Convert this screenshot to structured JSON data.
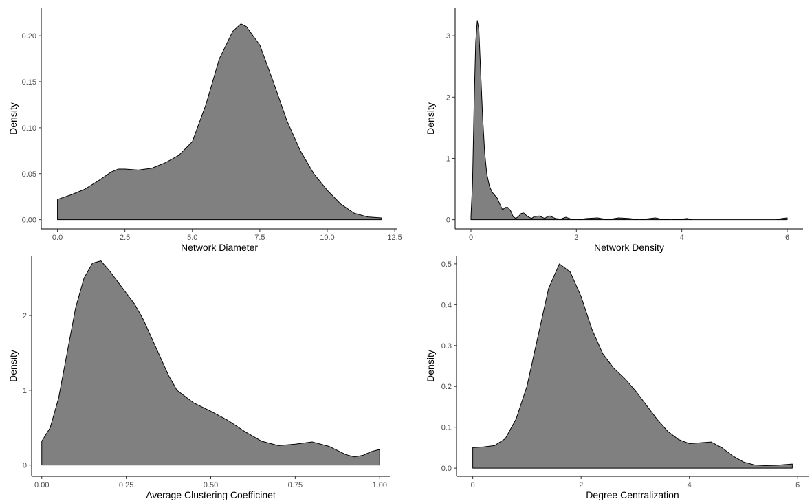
{
  "chart_data": [
    {
      "type": "area",
      "title": "",
      "xlabel": "Network Diameter",
      "ylabel": "Density",
      "xlim": [
        -0.6,
        12.6
      ],
      "ylim": [
        -0.01,
        0.23
      ],
      "xticks": [
        0.0,
        2.5,
        5.0,
        7.5,
        10.0,
        12.5
      ],
      "xtick_labels": [
        "0.0",
        "2.5",
        "5.0",
        "7.5",
        "10.0",
        "12.5"
      ],
      "yticks": [
        0.0,
        0.05,
        0.1,
        0.15,
        0.2
      ],
      "ytick_labels": [
        "0.00",
        "0.05",
        "0.10",
        "0.15",
        "0.20"
      ],
      "grid": false,
      "fill_color": "#808080",
      "x": [
        0,
        0.5,
        1,
        1.5,
        2,
        2.25,
        2.5,
        3,
        3.5,
        4,
        4.5,
        5,
        5.5,
        6,
        6.5,
        6.8,
        7,
        7.5,
        8,
        8.5,
        9,
        9.5,
        10,
        10.5,
        11,
        11.5,
        12
      ],
      "y": [
        0.022,
        0.027,
        0.033,
        0.042,
        0.052,
        0.055,
        0.055,
        0.054,
        0.056,
        0.062,
        0.07,
        0.085,
        0.125,
        0.175,
        0.205,
        0.213,
        0.21,
        0.19,
        0.15,
        0.108,
        0.075,
        0.05,
        0.032,
        0.017,
        0.007,
        0.003,
        0.002
      ]
    },
    {
      "type": "area",
      "title": "",
      "xlabel": "Network Density",
      "ylabel": "Density",
      "xlim": [
        -0.3,
        6.3
      ],
      "ylim": [
        -0.15,
        3.45
      ],
      "xticks": [
        0,
        2,
        4,
        6
      ],
      "xtick_labels": [
        "0",
        "2",
        "4",
        "6"
      ],
      "yticks": [
        0,
        1,
        2,
        3
      ],
      "ytick_labels": [
        "0",
        "1",
        "2",
        "3"
      ],
      "grid": false,
      "fill_color": "#808080",
      "x": [
        0,
        0.03,
        0.06,
        0.09,
        0.12,
        0.15,
        0.18,
        0.22,
        0.26,
        0.3,
        0.35,
        0.4,
        0.45,
        0.5,
        0.55,
        0.6,
        0.65,
        0.7,
        0.75,
        0.8,
        0.85,
        0.9,
        0.95,
        1.0,
        1.05,
        1.1,
        1.15,
        1.2,
        1.3,
        1.4,
        1.45,
        1.5,
        1.6,
        1.7,
        1.8,
        1.9,
        2.0,
        2.2,
        2.4,
        2.6,
        2.8,
        3.0,
        3.2,
        3.4,
        3.5,
        3.6,
        3.8,
        4.0,
        4.1,
        4.2,
        4.5,
        5.0,
        5.5,
        5.8,
        5.9,
        6.0
      ],
      "y": [
        0.05,
        0.6,
        1.9,
        2.9,
        3.25,
        3.1,
        2.5,
        1.7,
        1.1,
        0.75,
        0.55,
        0.45,
        0.4,
        0.35,
        0.25,
        0.16,
        0.2,
        0.2,
        0.15,
        0.05,
        0.02,
        0.05,
        0.1,
        0.11,
        0.07,
        0.04,
        0.02,
        0.05,
        0.06,
        0.02,
        0.05,
        0.06,
        0.02,
        0.01,
        0.04,
        0.01,
        0.0,
        0.02,
        0.03,
        0.0,
        0.03,
        0.02,
        0.0,
        0.02,
        0.03,
        0.01,
        0.0,
        0.01,
        0.02,
        0.0,
        0.0,
        0.0,
        0.0,
        0.0,
        0.02,
        0.03
      ]
    },
    {
      "type": "area",
      "title": "",
      "xlabel": "Average Clustering Coefficinet",
      "ylabel": "Density",
      "xlim": [
        -0.03,
        1.03
      ],
      "ylim": [
        -0.15,
        2.8
      ],
      "xticks": [
        0.0,
        0.25,
        0.5,
        0.75,
        1.0
      ],
      "xtick_labels": [
        "0.00",
        "0.25",
        "0.50",
        "0.75",
        "1.00"
      ],
      "yticks": [
        0,
        1,
        2
      ],
      "ytick_labels": [
        "0",
        "1",
        "2"
      ],
      "grid": false,
      "fill_color": "#808080",
      "x": [
        0,
        0.025,
        0.05,
        0.075,
        0.1,
        0.125,
        0.15,
        0.175,
        0.2,
        0.225,
        0.25,
        0.275,
        0.3,
        0.325,
        0.35,
        0.375,
        0.4,
        0.45,
        0.5,
        0.55,
        0.6,
        0.65,
        0.7,
        0.75,
        0.8,
        0.85,
        0.9,
        0.925,
        0.95,
        0.975,
        1.0
      ],
      "y": [
        0.32,
        0.5,
        0.9,
        1.5,
        2.1,
        2.5,
        2.7,
        2.73,
        2.6,
        2.45,
        2.3,
        2.15,
        1.95,
        1.7,
        1.45,
        1.2,
        1.0,
        0.83,
        0.72,
        0.6,
        0.45,
        0.32,
        0.26,
        0.28,
        0.31,
        0.25,
        0.14,
        0.11,
        0.13,
        0.18,
        0.21
      ]
    },
    {
      "type": "area",
      "title": "",
      "xlabel": "Degree Centralization",
      "ylabel": "Density",
      "xlim": [
        -0.3,
        6.2
      ],
      "ylim": [
        -0.02,
        0.52
      ],
      "xticks": [
        0,
        2,
        4,
        6
      ],
      "xtick_labels": [
        "0",
        "2",
        "4",
        "6"
      ],
      "yticks": [
        0.0,
        0.1,
        0.2,
        0.3,
        0.4,
        0.5
      ],
      "ytick_labels": [
        "0.0",
        "0.1",
        "0.2",
        "0.3",
        "0.4",
        "0.5"
      ],
      "grid": false,
      "fill_color": "#808080",
      "x": [
        0,
        0.2,
        0.4,
        0.6,
        0.8,
        1.0,
        1.2,
        1.4,
        1.6,
        1.8,
        2.0,
        2.2,
        2.4,
        2.6,
        2.8,
        3.0,
        3.2,
        3.4,
        3.6,
        3.8,
        4.0,
        4.2,
        4.4,
        4.6,
        4.8,
        5.0,
        5.2,
        5.4,
        5.6,
        5.8,
        5.9
      ],
      "y": [
        0.05,
        0.052,
        0.055,
        0.072,
        0.12,
        0.2,
        0.32,
        0.44,
        0.5,
        0.48,
        0.42,
        0.34,
        0.28,
        0.245,
        0.22,
        0.19,
        0.155,
        0.12,
        0.09,
        0.07,
        0.06,
        0.062,
        0.064,
        0.05,
        0.03,
        0.015,
        0.008,
        0.006,
        0.007,
        0.009,
        0.01
      ]
    }
  ]
}
